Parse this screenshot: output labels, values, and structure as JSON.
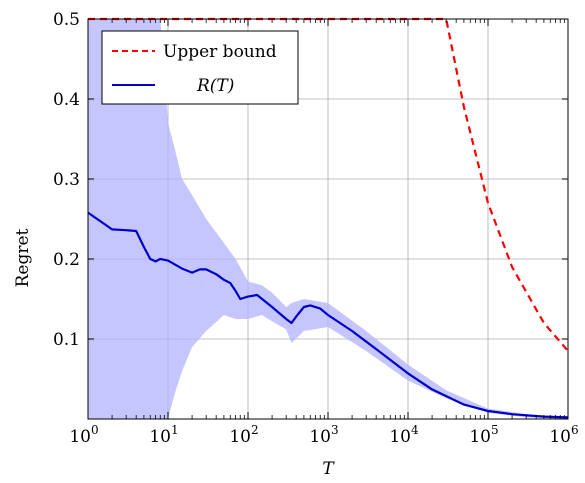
{
  "chart_data": {
    "type": "line",
    "xlabel": "T",
    "ylabel": "Regret",
    "x_scale": "log",
    "xlim": [
      1,
      1000000
    ],
    "ylim": [
      0,
      0.5
    ],
    "grid": true,
    "legend_placement": "top-left",
    "x_tick_bases": [
      "10",
      "10",
      "10",
      "10",
      "10",
      "10",
      "10"
    ],
    "x_tick_exponents": [
      "0",
      "1",
      "2",
      "3",
      "4",
      "5",
      "6"
    ],
    "y_ticks": [
      0.1,
      0.2,
      0.3,
      0.4,
      0.5
    ],
    "y_tick_labels": [
      "0.1",
      "0.2",
      "0.3",
      "0.4",
      "0.5"
    ],
    "series": [
      {
        "name": "Upper bound",
        "style": "dashed",
        "color": "#ff0000",
        "x": [
          1,
          10,
          100,
          1000,
          10000,
          30000,
          50000,
          100000,
          200000,
          500000,
          1000000
        ],
        "y": [
          0.5,
          0.5,
          0.5,
          0.5,
          0.5,
          0.5,
          0.39,
          0.27,
          0.19,
          0.12,
          0.085
        ]
      },
      {
        "name": "R(T)",
        "style": "solid",
        "color": "#0000cc",
        "x": [
          1,
          2,
          3,
          4,
          5,
          6,
          7,
          8,
          9,
          10,
          15,
          20,
          25,
          30,
          40,
          50,
          60,
          70,
          80,
          100,
          130,
          150,
          200,
          300,
          350,
          400,
          500,
          600,
          800,
          1000,
          2000,
          5000,
          10000,
          20000,
          50000,
          100000,
          200000,
          500000,
          1000000
        ],
        "y": [
          0.258,
          0.237,
          0.236,
          0.235,
          0.215,
          0.2,
          0.197,
          0.2,
          0.199,
          0.198,
          0.188,
          0.183,
          0.187,
          0.187,
          0.181,
          0.174,
          0.17,
          0.16,
          0.15,
          0.153,
          0.155,
          0.15,
          0.14,
          0.125,
          0.12,
          0.128,
          0.14,
          0.142,
          0.138,
          0.13,
          0.11,
          0.08,
          0.057,
          0.037,
          0.018,
          0.01,
          0.006,
          0.003,
          0.002
        ]
      }
    ],
    "confidence_band": {
      "series": "R(T)",
      "color": "#b3b3ff",
      "x": [
        1,
        2,
        3,
        5,
        7,
        8,
        10,
        12,
        15,
        20,
        30,
        50,
        70,
        100,
        150,
        200,
        300,
        350,
        500,
        1000,
        3000,
        10000,
        30000,
        100000,
        300000,
        1000000
      ],
      "upper": [
        0.5,
        0.5,
        0.5,
        0.5,
        0.5,
        0.5,
        0.37,
        0.34,
        0.3,
        0.28,
        0.25,
        0.22,
        0.2,
        0.172,
        0.167,
        0.158,
        0.14,
        0.145,
        0.15,
        0.145,
        0.11,
        0.068,
        0.036,
        0.013,
        0.006,
        0.002
      ],
      "lower": [
        0.0,
        0.0,
        0.0,
        0.0,
        0.0,
        0.0,
        0.0,
        0.03,
        0.06,
        0.09,
        0.11,
        0.13,
        0.125,
        0.125,
        0.13,
        0.122,
        0.112,
        0.095,
        0.11,
        0.115,
        0.085,
        0.048,
        0.026,
        0.008,
        0.002,
        0.0
      ]
    }
  }
}
